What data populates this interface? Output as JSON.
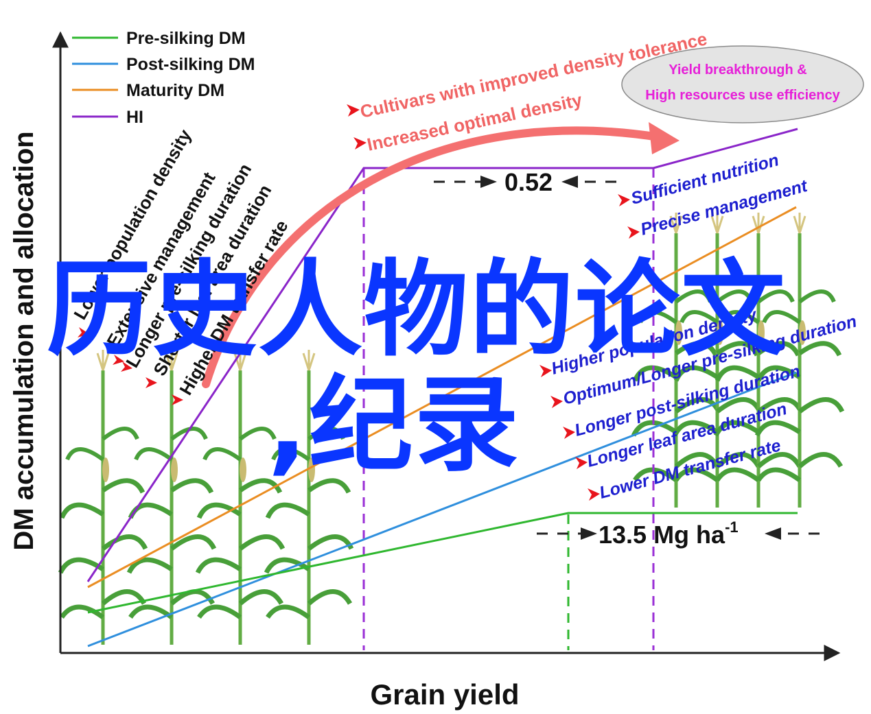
{
  "legend": [
    {
      "label": "Pre-silking DM",
      "color": "#2fb72f"
    },
    {
      "label": "Post-silking DM",
      "color": "#2f8fdd"
    },
    {
      "label": "Maturity DM",
      "color": "#ea8d22"
    },
    {
      "label": "HI",
      "color": "#8a25c9"
    }
  ],
  "axes": {
    "xlabel": "Grain yield",
    "ylabel": "DM accumulation and allocation"
  },
  "annotations": {
    "hi_value": "0.52",
    "yield_value": "13.5 Mg ha",
    "yield_sup": "-1",
    "ellipse_line1": "Yield breakthrough &",
    "ellipse_line2": "High resources use efficiency",
    "arc_label1": "Cultivars with improved density tolerance",
    "arc_label2": "Increased optimal density"
  },
  "left_factors": [
    "Lower population density",
    "Extensive management",
    "Longer pre-silking duration",
    "Shorter leaf area duration",
    "Higher DM transfer rate"
  ],
  "right_top_factors": [
    "Sufficient nutrition",
    "Precise management"
  ],
  "right_bottom_factors": [
    "Higher population density",
    "Optimum/Longer pre-silking duration",
    "Longer post-silking duration",
    "Longer leaf area duration",
    "Lower DM transfer rate"
  ],
  "overlay_title": {
    "line1": "历史人物的论文",
    "line2": ",纪录"
  },
  "colors": {
    "arrow": "#f47070",
    "marker": "#e8141c",
    "factor_text": "#1d1fcf",
    "arc_text": "#f06464",
    "ellipse_text": "#e61fd8",
    "overlay_text": "#0a36ff"
  }
}
